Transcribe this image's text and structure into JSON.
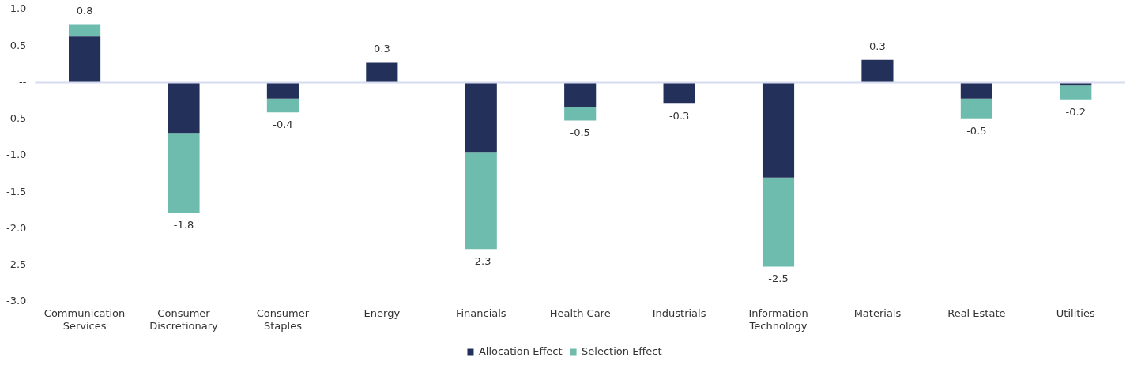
{
  "chart_data": {
    "type": "bar",
    "stacked": true,
    "categories": [
      "Communication Services",
      "Consumer Discretionary",
      "Consumer Staples",
      "Energy",
      "Financials",
      "Health Care",
      "Industrials",
      "Information Technology",
      "Materials",
      "Real Estate",
      "Utilities"
    ],
    "series": [
      {
        "name": "Allocation Effect",
        "color": "#22305a",
        "values": [
          0.63,
          -0.69,
          -0.22,
          0.27,
          -0.96,
          -0.34,
          -0.29,
          -1.3,
          0.31,
          -0.22,
          -0.04
        ]
      },
      {
        "name": "Selection Effect",
        "color": "#6dbcad",
        "values": [
          0.16,
          -1.09,
          -0.19,
          0,
          -1.32,
          -0.18,
          0,
          -1.22,
          0,
          -0.27,
          -0.19
        ]
      }
    ],
    "totals": [
      "0.8",
      "-1.8",
      "-0.4",
      "0.3",
      "-2.3",
      "-0.5",
      "-0.3",
      "-2.5",
      "0.3",
      "-0.5",
      "-0.2"
    ],
    "ylim": [
      -3,
      1
    ],
    "yticks": [
      {
        "value": 1,
        "label": "1.0"
      },
      0.5,
      {
        "value": 0,
        "label": "--"
      },
      -0.5,
      {
        "value": -1,
        "label": "-1.0"
      },
      -1.5,
      {
        "value": -2,
        "label": "-2.0"
      },
      -2.5,
      {
        "value": -3,
        "label": "-3.0"
      }
    ],
    "ref_lines": [
      {
        "axis": "y",
        "value": 0,
        "color": "#d5dcef"
      }
    ],
    "grid": false,
    "legend": "bottom"
  }
}
